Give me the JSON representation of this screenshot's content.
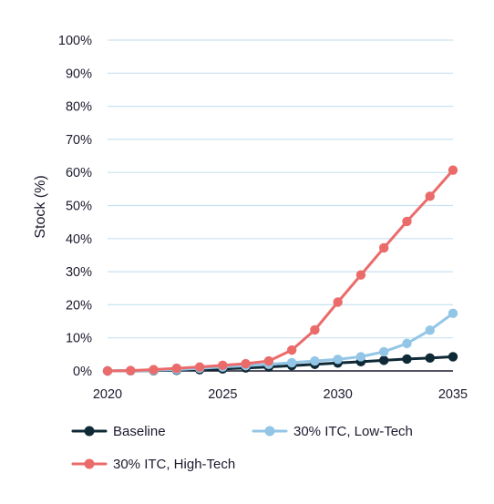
{
  "chart_data": {
    "type": "line",
    "title": "",
    "xlabel": "",
    "ylabel": "Stock (%)",
    "x": [
      2020,
      2021,
      2022,
      2023,
      2024,
      2025,
      2026,
      2027,
      2028,
      2029,
      2030,
      2031,
      2032,
      2033,
      2034,
      2035
    ],
    "x_ticks": [
      "2020",
      "2025",
      "2030",
      "2035"
    ],
    "y_ticks": [
      "0%",
      "10%",
      "20%",
      "30%",
      "40%",
      "50%",
      "60%",
      "70%",
      "80%",
      "90%",
      "100%"
    ],
    "xlim": [
      2020,
      2035
    ],
    "ylim": [
      0,
      100
    ],
    "grid": "horizontal",
    "legend_position": "bottom",
    "series": [
      {
        "name": "Baseline",
        "color": "#0f2a36",
        "values": [
          0,
          0.05,
          0.1,
          0.2,
          0.4,
          0.6,
          0.9,
          1.2,
          1.6,
          2.0,
          2.4,
          2.8,
          3.2,
          3.6,
          3.9,
          4.3
        ]
      },
      {
        "name": "30% ITC, Low-Tech",
        "color": "#93c6e6",
        "values": [
          0,
          0.05,
          0.2,
          0.4,
          0.8,
          1.2,
          1.6,
          2.0,
          2.5,
          3.0,
          3.5,
          4.3,
          5.8,
          8.3,
          12.3,
          17.4
        ]
      },
      {
        "name": "30% ITC, High-Tech",
        "color": "#eb6b6b",
        "values": [
          0,
          0.1,
          0.4,
          0.8,
          1.2,
          1.7,
          2.2,
          3.0,
          6.3,
          12.4,
          20.8,
          29.0,
          37.2,
          45.2,
          52.8,
          60.7
        ]
      }
    ]
  }
}
